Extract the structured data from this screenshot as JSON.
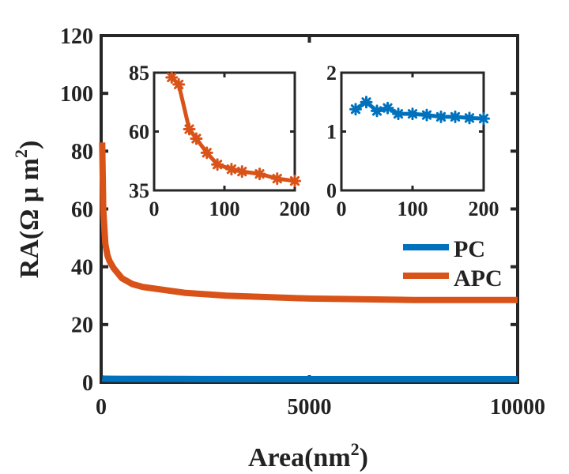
{
  "colors": {
    "pc": "#0072BD",
    "apc": "#D95319",
    "axis": "#262626"
  },
  "chart_data": [
    {
      "id": "main",
      "type": "line",
      "xlabel": "Area(nm",
      "xlabel_sup": "2",
      "xlabel_suffix": ")",
      "ylabel": "RA(Ω μ m",
      "ylabel_sup": "2",
      "ylabel_suffix": ")",
      "xlim": [
        0,
        10000
      ],
      "ylim": [
        0,
        120
      ],
      "xticks": [
        0,
        5000,
        10000
      ],
      "yticks": [
        0,
        20,
        40,
        60,
        80,
        100,
        120
      ],
      "legend": "right",
      "series": [
        {
          "key": "pc",
          "name": "PC",
          "x": [
            25,
            50,
            100,
            200,
            500,
            1000,
            2000,
            5000,
            10000
          ],
          "y": [
            1.35,
            1.3,
            1.25,
            1.22,
            1.2,
            1.18,
            1.15,
            1.1,
            1.1
          ]
        },
        {
          "key": "apc",
          "name": "APC",
          "x": [
            25,
            50,
            100,
            150,
            200,
            300,
            500,
            750,
            1000,
            1500,
            2000,
            3000,
            5000,
            7500,
            10000
          ],
          "y": [
            83,
            60,
            48,
            44,
            42,
            39.5,
            36,
            34,
            33,
            32,
            31,
            30,
            29,
            28.5,
            28.5
          ]
        }
      ]
    },
    {
      "id": "inset1",
      "type": "line",
      "xlim": [
        0,
        200
      ],
      "ylim": [
        35,
        85
      ],
      "xticks": [
        0,
        100,
        200
      ],
      "yticks": [
        35,
        60,
        85
      ],
      "series": [
        {
          "key": "apc",
          "x": [
            25,
            35,
            50,
            60,
            75,
            90,
            110,
            125,
            150,
            175,
            200
          ],
          "y": [
            83,
            80,
            61,
            57,
            51,
            46,
            44,
            43,
            42,
            40,
            39
          ]
        }
      ]
    },
    {
      "id": "inset2",
      "type": "line",
      "xlim": [
        0,
        200
      ],
      "ylim": [
        0,
        2
      ],
      "xticks": [
        0,
        100,
        200
      ],
      "yticks": [
        0,
        1,
        2
      ],
      "series": [
        {
          "key": "pc",
          "x": [
            20,
            35,
            50,
            65,
            80,
            100,
            120,
            140,
            160,
            180,
            200
          ],
          "y": [
            1.38,
            1.5,
            1.35,
            1.4,
            1.3,
            1.3,
            1.28,
            1.25,
            1.25,
            1.23,
            1.22
          ]
        }
      ]
    }
  ]
}
